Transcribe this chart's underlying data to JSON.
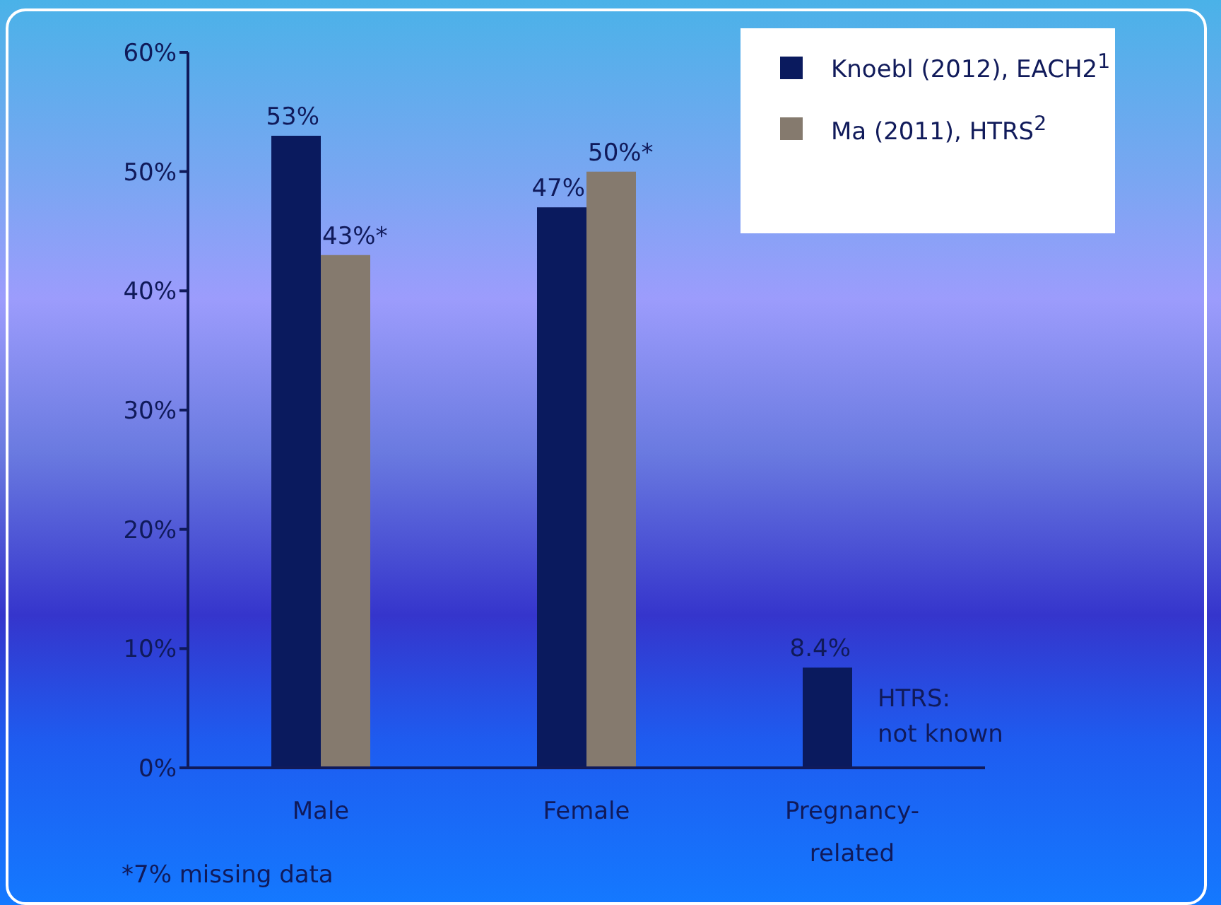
{
  "chart_data": {
    "type": "bar",
    "categories": [
      "Male",
      "Female",
      "Pregnancy-related"
    ],
    "series": [
      {
        "name": "Knoebl (2012), EACH2$^{1}$",
        "color": "#0a1a5e",
        "values": [
          53,
          47,
          8.4
        ],
        "value_labels": [
          "53%",
          "47%",
          "8.4%"
        ]
      },
      {
        "name": "Ma (2011), HTRS$^{2}$",
        "color": "#857a6e",
        "values": [
          43,
          50,
          null
        ],
        "value_labels": [
          "43%*",
          "50%*",
          null
        ]
      }
    ],
    "ylim": [
      0,
      60
    ],
    "yticks": [
      {
        "value": 0,
        "label": "0%"
      },
      {
        "value": 10,
        "label": "10%"
      },
      {
        "value": 20,
        "label": "20%"
      },
      {
        "value": 30,
        "label": "30%"
      },
      {
        "value": 40,
        "label": "40%"
      },
      {
        "value": 50,
        "label": "50%"
      },
      {
        "value": 60,
        "label": "60%"
      }
    ],
    "grid": false,
    "legend": "top right",
    "annotations": [
      {
        "text": "HTRS:\nnot known",
        "x": "Pregnancy-related",
        "y": 4
      },
      "*7% missing data"
    ]
  }
}
